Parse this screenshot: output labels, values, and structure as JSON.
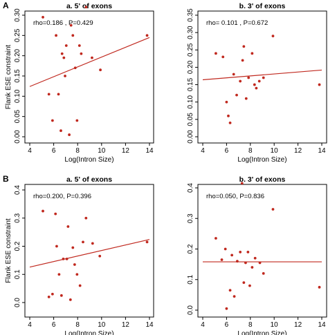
{
  "figure": {
    "panel_labels": [
      "A",
      "B"
    ]
  },
  "chart_data": [
    {
      "type": "scatter",
      "panel": "A",
      "title": "a. 5' of exons",
      "xlabel": "Log(Intron Size)",
      "ylabel": "Flank ESE constraint",
      "annotation": "rho=0.186 , P=0.429",
      "xlim": [
        4,
        14
      ],
      "ylim": [
        0,
        0.3
      ],
      "xticks": [
        "4",
        "6",
        "8",
        "10",
        "12",
        "14"
      ],
      "yticks": [
        "0.00",
        "0.05",
        "0.10",
        "0.15",
        "0.20",
        "0.25",
        "0.30"
      ],
      "points": [
        {
          "x": 5.1,
          "y": 0.295
        },
        {
          "x": 5.6,
          "y": 0.105
        },
        {
          "x": 5.9,
          "y": 0.04
        },
        {
          "x": 6.2,
          "y": 0.25
        },
        {
          "x": 6.4,
          "y": 0.105
        },
        {
          "x": 6.6,
          "y": 0.015
        },
        {
          "x": 6.7,
          "y": 0.205
        },
        {
          "x": 6.85,
          "y": 0.195
        },
        {
          "x": 6.95,
          "y": 0.15
        },
        {
          "x": 7.05,
          "y": 0.225
        },
        {
          "x": 7.3,
          "y": 0.005
        },
        {
          "x": 7.45,
          "y": 0.275
        },
        {
          "x": 7.6,
          "y": 0.25
        },
        {
          "x": 7.8,
          "y": 0.17
        },
        {
          "x": 7.95,
          "y": 0.04
        },
        {
          "x": 8.15,
          "y": 0.225
        },
        {
          "x": 8.3,
          "y": 0.205
        },
        {
          "x": 8.7,
          "y": 0.32
        },
        {
          "x": 9.2,
          "y": 0.195
        },
        {
          "x": 9.9,
          "y": 0.165
        },
        {
          "x": 13.8,
          "y": 0.25
        }
      ],
      "fit_line": {
        "x": [
          4,
          14
        ],
        "y": [
          0.124,
          0.245
        ]
      },
      "series_color": "#c0281e"
    },
    {
      "type": "scatter",
      "panel": "A",
      "title": "b. 3' of exons",
      "xlabel": "Log(Intron Size)",
      "ylabel": "",
      "annotation": "rho= 0.101 , P=0.672",
      "xlim": [
        4,
        14
      ],
      "ylim": [
        0,
        0.35
      ],
      "xticks": [
        "4",
        "6",
        "8",
        "10",
        "12",
        "14"
      ],
      "yticks": [
        "0.00",
        "0.05",
        "0.10",
        "0.15",
        "0.20",
        "0.25",
        "0.30",
        "0.35"
      ],
      "points": [
        {
          "x": 5.1,
          "y": 0.24
        },
        {
          "x": 5.7,
          "y": 0.23
        },
        {
          "x": 6.0,
          "y": 0.1
        },
        {
          "x": 6.15,
          "y": 0.06
        },
        {
          "x": 6.3,
          "y": 0.04
        },
        {
          "x": 6.6,
          "y": 0.18
        },
        {
          "x": 6.85,
          "y": 0.12
        },
        {
          "x": 7.15,
          "y": 0.16
        },
        {
          "x": 7.35,
          "y": 0.22
        },
        {
          "x": 7.45,
          "y": 0.26
        },
        {
          "x": 7.65,
          "y": 0.11
        },
        {
          "x": 7.85,
          "y": 0.17
        },
        {
          "x": 8.15,
          "y": 0.24
        },
        {
          "x": 8.35,
          "y": 0.15
        },
        {
          "x": 8.5,
          "y": 0.14
        },
        {
          "x": 8.75,
          "y": 0.16
        },
        {
          "x": 9.1,
          "y": 0.17
        },
        {
          "x": 9.9,
          "y": 0.29
        },
        {
          "x": 13.8,
          "y": 0.15
        }
      ],
      "fit_line": {
        "x": [
          4,
          14
        ],
        "y": [
          0.164,
          0.192
        ]
      },
      "series_color": "#c0281e"
    },
    {
      "type": "scatter",
      "panel": "B",
      "title": "a. 5' of exons",
      "xlabel": "Log(Intron Size)",
      "ylabel": "Flank ESE constraint",
      "annotation": "rho=0.200, P=0.396",
      "xlim": [
        4,
        14
      ],
      "ylim": [
        0,
        0.4
      ],
      "xticks": [
        "4",
        "6",
        "8",
        "10",
        "12",
        "14"
      ],
      "yticks": [
        "0.0",
        "0.1",
        "0.2",
        "0.3",
        "0.4"
      ],
      "points": [
        {
          "x": 5.1,
          "y": 0.325
        },
        {
          "x": 5.6,
          "y": 0.02
        },
        {
          "x": 5.9,
          "y": 0.03
        },
        {
          "x": 6.15,
          "y": 0.315
        },
        {
          "x": 6.25,
          "y": 0.2
        },
        {
          "x": 6.45,
          "y": 0.1
        },
        {
          "x": 6.65,
          "y": 0.025
        },
        {
          "x": 6.8,
          "y": 0.155
        },
        {
          "x": 7.1,
          "y": 0.155
        },
        {
          "x": 7.2,
          "y": 0.27
        },
        {
          "x": 7.4,
          "y": 0.01
        },
        {
          "x": 7.6,
          "y": 0.195
        },
        {
          "x": 7.75,
          "y": 0.135
        },
        {
          "x": 7.95,
          "y": 0.1
        },
        {
          "x": 8.2,
          "y": 0.06
        },
        {
          "x": 8.45,
          "y": 0.215
        },
        {
          "x": 8.7,
          "y": 0.3
        },
        {
          "x": 9.25,
          "y": 0.21
        },
        {
          "x": 9.85,
          "y": 0.165
        },
        {
          "x": 13.8,
          "y": 0.215
        }
      ],
      "fit_line": {
        "x": [
          4,
          14
        ],
        "y": [
          0.126,
          0.224
        ]
      },
      "series_color": "#c0281e"
    },
    {
      "type": "scatter",
      "panel": "B",
      "title": "b. 3' of exons",
      "xlabel": "Log(Intron Size)",
      "ylabel": "",
      "annotation": "rho=0.050, P=0.836",
      "xlim": [
        4,
        14
      ],
      "ylim": [
        0,
        0.4
      ],
      "xticks": [
        "4",
        "6",
        "8",
        "10",
        "12",
        "14"
      ],
      "yticks": [
        "0.0",
        "0.1",
        "0.2",
        "0.3",
        "0.4"
      ],
      "points": [
        {
          "x": 5.1,
          "y": 0.235
        },
        {
          "x": 5.6,
          "y": 0.165
        },
        {
          "x": 5.9,
          "y": 0.2
        },
        {
          "x": 6.0,
          "y": 0.005
        },
        {
          "x": 6.3,
          "y": 0.065
        },
        {
          "x": 6.45,
          "y": 0.18
        },
        {
          "x": 6.65,
          "y": 0.045
        },
        {
          "x": 6.9,
          "y": 0.16
        },
        {
          "x": 7.15,
          "y": 0.19
        },
        {
          "x": 7.3,
          "y": 0.415
        },
        {
          "x": 7.45,
          "y": 0.09
        },
        {
          "x": 7.6,
          "y": 0.155
        },
        {
          "x": 7.8,
          "y": 0.19
        },
        {
          "x": 7.95,
          "y": 0.08
        },
        {
          "x": 8.15,
          "y": 0.14
        },
        {
          "x": 8.4,
          "y": 0.17
        },
        {
          "x": 8.8,
          "y": 0.155
        },
        {
          "x": 9.1,
          "y": 0.12
        },
        {
          "x": 9.9,
          "y": 0.33
        },
        {
          "x": 13.8,
          "y": 0.075
        }
      ],
      "fit_line": {
        "x": [
          4,
          14
        ],
        "y": [
          0.158,
          0.158
        ]
      },
      "series_color": "#c0281e"
    }
  ]
}
